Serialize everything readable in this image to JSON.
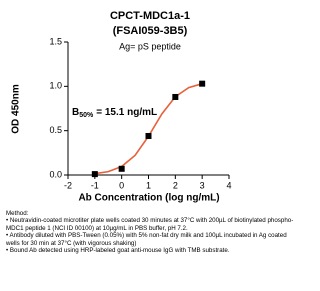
{
  "chart_data": {
    "type": "scatter",
    "title": [
      "CPCT-MDC1a-1",
      "(FSAI059-3B5)"
    ],
    "subtitle": "Ag= pS peptide",
    "x_label": "Ab Concentration (log ng/mL)",
    "y_label": "OD 450nm",
    "annotation": {
      "text": "B",
      "subscript": "50%",
      "rest": "= 15.1 ng/mL"
    },
    "x": [
      -1,
      0,
      1,
      2,
      3
    ],
    "values": [
      0.01,
      0.07,
      0.44,
      0.88,
      1.03
    ],
    "color": "#000000",
    "curve": {
      "color": "#e8603c",
      "x": [
        -1,
        -0.5,
        0,
        0.5,
        1,
        1.5,
        2,
        2.5,
        3
      ],
      "values": [
        0.015,
        0.038,
        0.096,
        0.222,
        0.437,
        0.69,
        0.883,
        0.986,
        1.03
      ]
    },
    "xlim": [
      -2,
      4
    ],
    "xticks": [
      -2,
      -1,
      0,
      1,
      2,
      3,
      4
    ],
    "ylim": [
      0,
      1.5
    ],
    "yticks": [
      {
        "value": 0,
        "label": "0.0"
      },
      0.5,
      {
        "value": 1,
        "label": "1.0"
      },
      1.5
    ]
  },
  "method": {
    "heading": "Method:",
    "items": [
      "• Neutravidin-coated microtiter plate wells coated 30 minutes at 37°C  with 200µL of biotinylated phospho-MDC1 peptide 1 (NCI ID 00100) at 10µg/mL in PBS buffer, pH 7.2.",
      "• Antibody diluted with PBS-Tween (0.05%) with 5% non-fat dry milk and 100µL incubated in Ag coated wells for 30 min at 37°C (with vigorous shaking)",
      "• Bound Ab detected using HRP-labeled goat anti-mouse IgG with TMB substrate."
    ]
  }
}
